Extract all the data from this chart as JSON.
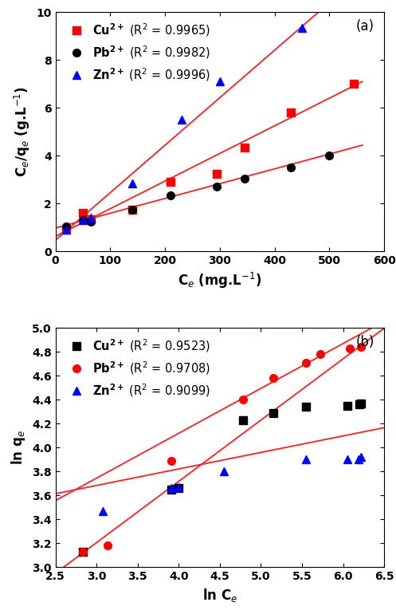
{
  "panel_a": {
    "title": "(a)",
    "xlabel": "C$_e$ (mg.L$^{-1}$)",
    "ylabel": "C$_e$/q$_e$ (g.L$^{-1}$)",
    "xlim": [
      0,
      600
    ],
    "ylim": [
      0,
      10
    ],
    "xticks": [
      0,
      100,
      200,
      300,
      400,
      500,
      600
    ],
    "yticks": [
      0,
      2,
      4,
      6,
      8,
      10
    ],
    "Cu": {
      "x": [
        20,
        50,
        65,
        140,
        210,
        295,
        345,
        430,
        545
      ],
      "y": [
        0.9,
        1.6,
        1.35,
        1.75,
        2.9,
        3.25,
        4.35,
        5.8,
        7.0
      ],
      "color": "red",
      "marker": "s",
      "label": "$\\mathbf{Cu}^{\\mathbf{2+}}$ (R$^2$ = 0.9965)"
    },
    "Pb": {
      "x": [
        20,
        50,
        65,
        140,
        210,
        295,
        345,
        430,
        500
      ],
      "y": [
        1.05,
        1.3,
        1.25,
        1.75,
        2.35,
        2.7,
        3.05,
        3.5,
        4.0
      ],
      "color": "black",
      "marker": "o",
      "label": "$\\mathbf{Pb}^{\\mathbf{2+}}$ (R$^2$ = 0.9982)"
    },
    "Zn": {
      "x": [
        20,
        50,
        65,
        140,
        230,
        300,
        450
      ],
      "y": [
        0.9,
        1.3,
        1.4,
        2.85,
        5.5,
        7.1,
        9.35
      ],
      "color": "blue",
      "marker": "^",
      "label": "$\\mathbf{Zn}^{\\mathbf{2+}}$ (R$^2$ = 0.9996)"
    },
    "fit_Cu": {
      "slope": 0.01155,
      "intercept": 0.63
    },
    "fit_Pb": {
      "slope": 0.00618,
      "intercept": 0.98
    },
    "fit_Zn": {
      "slope": 0.01985,
      "intercept": 0.47
    },
    "fit_Cu_xrange": [
      0,
      560
    ],
    "fit_Pb_xrange": [
      0,
      560
    ],
    "fit_Zn_xrange": [
      0,
      490
    ]
  },
  "panel_b": {
    "title": "(b)",
    "xlabel": "ln C$_e$",
    "ylabel": "ln q$_e$",
    "xlim": [
      2.5,
      6.5
    ],
    "ylim": [
      3.0,
      5.0
    ],
    "xticks": [
      2.5,
      3.0,
      3.5,
      4.0,
      4.5,
      5.0,
      5.5,
      6.0,
      6.5
    ],
    "yticks": [
      3.0,
      3.2,
      3.4,
      3.6,
      3.8,
      4.0,
      4.2,
      4.4,
      4.6,
      4.8,
      5.0
    ],
    "Cu": {
      "x": [
        2.83,
        3.91,
        4.0,
        4.78,
        5.15,
        5.55,
        6.05,
        6.2,
        6.22
      ],
      "y": [
        3.13,
        3.65,
        3.66,
        4.23,
        4.29,
        4.34,
        4.35,
        4.36,
        4.37
      ],
      "color": "black",
      "marker": "s",
      "label": "$\\mathbf{Cu}^{\\mathbf{2+}}$ (R$^2$ = 0.9523)"
    },
    "Pb": {
      "x": [
        2.83,
        3.13,
        3.91,
        4.78,
        5.15,
        5.55,
        5.72,
        6.08,
        6.22
      ],
      "y": [
        3.13,
        3.18,
        3.89,
        4.4,
        4.58,
        4.71,
        4.78,
        4.83,
        4.84
      ],
      "color": "red",
      "marker": "o",
      "label": "$\\mathbf{Pb}^{\\mathbf{2+}}$ (R$^2$ = 0.9708)"
    },
    "Zn": {
      "x": [
        3.08,
        3.91,
        4.0,
        4.55,
        5.55,
        6.05,
        6.19,
        6.22
      ],
      "y": [
        3.47,
        3.66,
        3.67,
        3.8,
        3.9,
        3.9,
        3.9,
        3.92
      ],
      "color": "blue",
      "marker": "^",
      "label": "$\\mathbf{Zn}^{\\mathbf{2+}}$ (R$^2$ = 0.9099)"
    },
    "fit_Cu": {
      "slope": 0.375,
      "intercept": 2.62
    },
    "fit_Pb": {
      "slope": 0.512,
      "intercept": 1.67
    },
    "fit_Zn": {
      "slope": 0.138,
      "intercept": 3.27
    },
    "fit_Cu_xrange": [
      2.5,
      6.5
    ],
    "fit_Pb_xrange": [
      2.5,
      6.5
    ],
    "fit_Zn_xrange": [
      2.5,
      6.5
    ]
  },
  "line_color": "#e83030",
  "markersize": 7,
  "linewidth": 1.4
}
